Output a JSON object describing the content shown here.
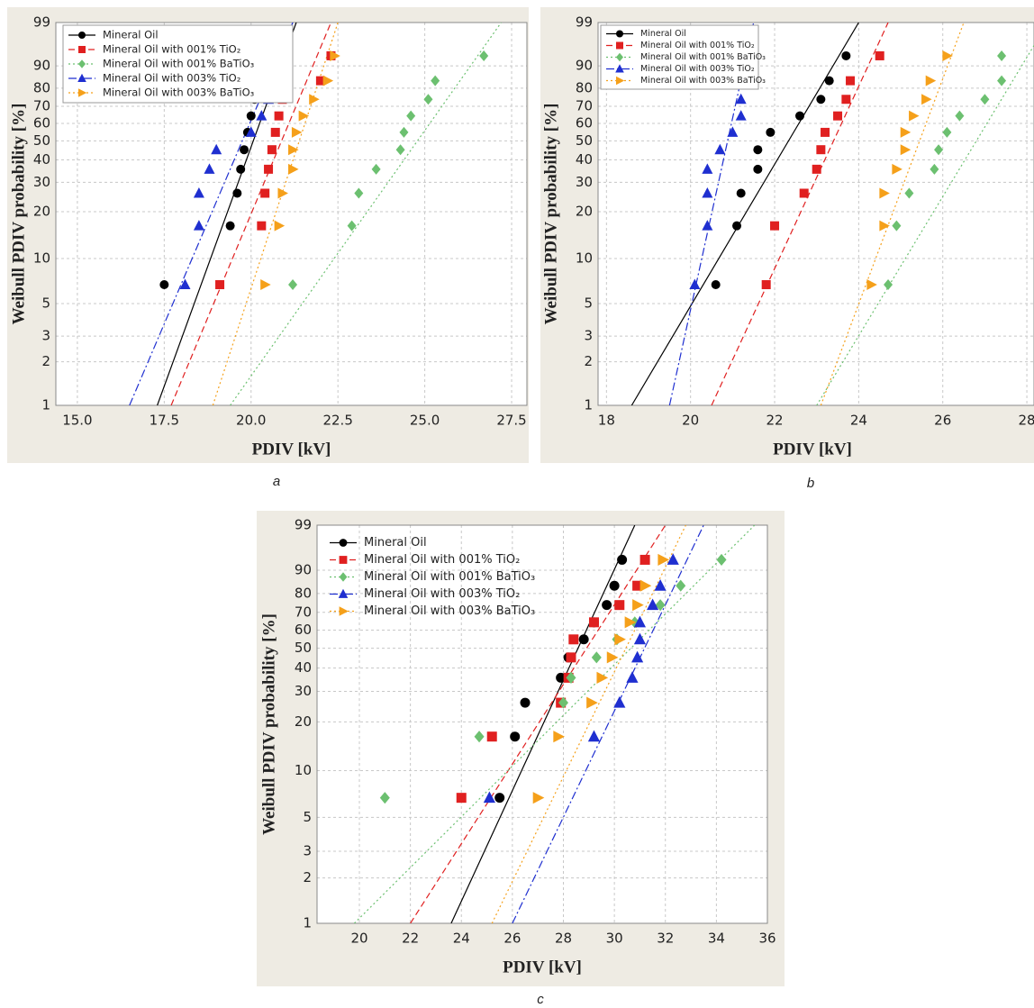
{
  "chart_data": [
    {
      "type": "scatter",
      "caption": "a",
      "x_label": "PDIV [kV]",
      "y_label": "Weibull PDIV probability [%]",
      "yscale": "weibull",
      "grid": true,
      "legend": "upper left",
      "xlim": [
        14.38,
        27.94
      ],
      "xticks": [
        {
          "value": 15,
          "label": "15.0"
        },
        17.5,
        {
          "value": 20,
          "label": "20.0"
        },
        22.5,
        {
          "value": 25,
          "label": "25.0"
        },
        27.5
      ],
      "ylim": [
        1,
        99
      ],
      "yticks": [
        1,
        2,
        3,
        5,
        10,
        20,
        30,
        40,
        50,
        60,
        70,
        80,
        90,
        99
      ],
      "y": [
        6.7,
        16.3,
        25.9,
        35.6,
        45.2,
        54.8,
        64.4,
        74.0,
        83.7,
        93.3
      ],
      "series": [
        {
          "name": "Mineral Oil",
          "color": "#000000",
          "marker": "circle",
          "dash": "solid",
          "x": [
            17.5,
            19.4,
            19.6,
            19.7,
            19.8,
            19.9,
            20.0,
            20.1,
            20.3,
            21.0
          ],
          "fit_x": [
            17.3,
            21.3
          ]
        },
        {
          "name": "Mineral Oil with 001% TiO₂",
          "color": "#e02020",
          "marker": "square",
          "dash": "dashed",
          "x": [
            19.1,
            20.3,
            20.4,
            20.5,
            20.6,
            20.7,
            20.8,
            20.9,
            22.0,
            22.3
          ],
          "fit_x": [
            17.7,
            22.3
          ]
        },
        {
          "name": "Mineral Oil with 001% BaTiO₃",
          "color": "#6cc070",
          "marker": "diamond",
          "dash": "dotted",
          "x": [
            21.2,
            22.9,
            23.1,
            23.6,
            24.3,
            24.4,
            24.6,
            25.1,
            25.3,
            26.7
          ],
          "fit_x": [
            19.4,
            27.2
          ]
        },
        {
          "name": "Mineral Oil with 003% TiO₂",
          "color": "#1f2fd0",
          "marker": "triangle-up",
          "dash": "dashdot",
          "x": [
            18.1,
            18.5,
            18.5,
            18.8,
            19.0,
            20.0,
            20.3,
            20.5,
            20.6,
            20.8
          ],
          "fit_x": [
            16.5,
            21.2
          ]
        },
        {
          "name": "Mineral Oil with 003% BaTiO₃",
          "color": "#f5a01a",
          "marker": "triangle-right",
          "dash": "dotted",
          "x": [
            20.4,
            20.8,
            20.9,
            21.2,
            21.2,
            21.3,
            21.5,
            21.8,
            22.2,
            22.4
          ],
          "fit_x": [
            18.9,
            22.5
          ]
        }
      ]
    },
    {
      "type": "scatter",
      "caption": "b",
      "x_label": "PDIV [kV]",
      "y_label": "Weibull PDIV probability [%]",
      "yscale": "weibull",
      "grid": true,
      "legend": "upper left",
      "xlim": [
        17.8,
        28.17
      ],
      "xticks": [
        18,
        20,
        22,
        24,
        26,
        28
      ],
      "ylim": [
        1,
        99
      ],
      "yticks": [
        1,
        2,
        3,
        5,
        10,
        20,
        30,
        40,
        50,
        60,
        70,
        80,
        90,
        99
      ],
      "y": [
        6.7,
        16.3,
        25.9,
        35.6,
        45.2,
        54.8,
        64.4,
        74.0,
        83.7,
        93.3
      ],
      "series": [
        {
          "name": "Mineral Oil",
          "color": "#000000",
          "marker": "circle",
          "dash": "solid",
          "x": [
            20.6,
            21.1,
            21.2,
            21.6,
            21.6,
            21.9,
            22.6,
            23.1,
            23.3,
            23.7
          ],
          "fit_x": [
            18.6,
            24.0
          ]
        },
        {
          "name": "Mineral Oil with 001% TiO₂",
          "color": "#e02020",
          "marker": "square",
          "dash": "dashed",
          "x": [
            21.8,
            22.0,
            22.7,
            23.0,
            23.1,
            23.2,
            23.5,
            23.7,
            23.8,
            24.5
          ],
          "fit_x": [
            20.5,
            24.7
          ]
        },
        {
          "name": "Mineral Oil with 001% BaTiO₃",
          "color": "#6cc070",
          "marker": "diamond",
          "dash": "dotted",
          "x": [
            24.7,
            24.9,
            25.2,
            25.8,
            25.9,
            26.1,
            26.4,
            27.0,
            27.4,
            27.4
          ],
          "fit_x": [
            23.0,
            28.5
          ]
        },
        {
          "name": "Mineral Oil with 003% TiO₂",
          "color": "#1f2fd0",
          "marker": "triangle-up",
          "dash": "dashdot",
          "x": [
            20.1,
            20.4,
            20.4,
            20.4,
            20.7,
            21.0,
            21.2,
            21.2,
            21.2,
            21.3
          ],
          "fit_x": [
            19.5,
            21.5
          ]
        },
        {
          "name": "Mineral Oil with 003% BaTiO₃",
          "color": "#f5a01a",
          "marker": "triangle-right",
          "dash": "dotted",
          "x": [
            24.3,
            24.6,
            24.6,
            24.9,
            25.1,
            25.1,
            25.3,
            25.6,
            25.7,
            26.1
          ],
          "fit_x": [
            23.1,
            26.5
          ]
        }
      ]
    },
    {
      "type": "scatter",
      "caption": "c",
      "x_label": "PDIV [kV]",
      "y_label": "Weibull PDIV probability [%]",
      "yscale": "weibull",
      "grid": true,
      "legend": "upper left",
      "xlim": [
        18.34,
        36.0
      ],
      "xticks": [
        20,
        22,
        24,
        26,
        28,
        30,
        32,
        34,
        36
      ],
      "ylim": [
        1,
        99
      ],
      "yticks": [
        1,
        2,
        3,
        5,
        10,
        20,
        30,
        40,
        50,
        60,
        70,
        80,
        90,
        99
      ],
      "y": [
        6.7,
        16.3,
        25.9,
        35.6,
        45.2,
        54.8,
        64.4,
        74.0,
        83.7,
        93.3
      ],
      "series": [
        {
          "name": "Mineral Oil",
          "color": "#000000",
          "marker": "circle",
          "dash": "solid",
          "x": [
            25.5,
            26.1,
            26.5,
            27.9,
            28.2,
            28.8,
            29.2,
            29.7,
            30.0,
            30.3
          ],
          "fit_x": [
            23.6,
            30.8
          ]
        },
        {
          "name": "Mineral Oil with 001% TiO₂",
          "color": "#e02020",
          "marker": "square",
          "dash": "dashed",
          "x": [
            24.0,
            25.2,
            27.9,
            28.2,
            28.3,
            28.4,
            29.2,
            30.2,
            30.9,
            31.2
          ],
          "fit_x": [
            22.0,
            32.0
          ]
        },
        {
          "name": "Mineral Oil with 001% BaTiO₃",
          "color": "#6cc070",
          "marker": "diamond",
          "dash": "dotted",
          "x": [
            21.0,
            24.7,
            28.0,
            28.3,
            29.3,
            30.1,
            30.8,
            31.8,
            32.6,
            34.2
          ],
          "fit_x": [
            19.8,
            35.5
          ]
        },
        {
          "name": "Mineral Oil with 003% TiO₂",
          "color": "#1f2fd0",
          "marker": "triangle-up",
          "dash": "dashdot",
          "x": [
            25.1,
            29.2,
            30.2,
            30.7,
            30.9,
            31.0,
            31.0,
            31.5,
            31.8,
            32.3
          ],
          "fit_x": [
            26.0,
            33.5
          ]
        },
        {
          "name": "Mineral Oil with 003% BaTiO₃",
          "color": "#f5a01a",
          "marker": "triangle-right",
          "dash": "dotted",
          "x": [
            27.0,
            27.8,
            29.1,
            29.5,
            29.9,
            30.2,
            30.6,
            30.9,
            31.2,
            31.9
          ],
          "fit_x": [
            25.2,
            32.8
          ]
        }
      ]
    }
  ]
}
